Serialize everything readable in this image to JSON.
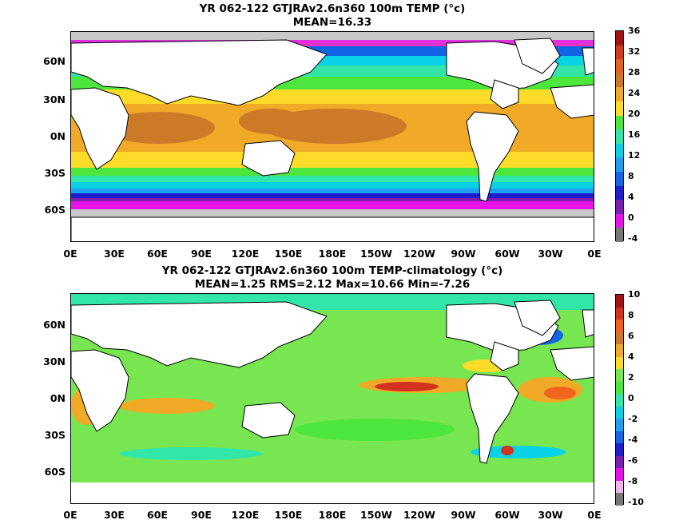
{
  "panels": [
    {
      "title_line1": "YR 062-122 GTJRAv2.6n360 100m TEMP (°c)",
      "title_line2": "MEAN=16.33",
      "lat_labels": [
        "60N",
        "30N",
        "0N",
        "30S",
        "60S"
      ],
      "lon_labels": [
        "0E",
        "30E",
        "60E",
        "90E",
        "120E",
        "150E",
        "180E",
        "150W",
        "120W",
        "90W",
        "60W",
        "30W",
        "0E"
      ],
      "colorbar_labels": [
        "36",
        "32",
        "28",
        "24",
        "20",
        "16",
        "12",
        "8",
        "4",
        "0",
        "-4"
      ],
      "colorbar_colors": [
        "#a01414",
        "#d23c1e",
        "#e3641e",
        "#cd7a28",
        "#f0aa28",
        "#fcdc28",
        "#4ce63c",
        "#32e6aa",
        "#0ad2e6",
        "#1ea0f0",
        "#1464e6",
        "#1e1ecd",
        "#7a1eb4",
        "#e614e6",
        "#787878"
      ]
    },
    {
      "title_line1": "YR 062-122 GTJRAv2.6n360 100m TEMP-climatology (°c)",
      "title_line2": "MEAN=1.25   RMS=2.12   Max=10.66   Min=-7.26",
      "lat_labels": [
        "60N",
        "30N",
        "0N",
        "30S",
        "60S"
      ],
      "lon_labels": [
        "0E",
        "30E",
        "60E",
        "90E",
        "120E",
        "150E",
        "180E",
        "150W",
        "120W",
        "90W",
        "60W",
        "30W",
        "0E"
      ],
      "colorbar_labels": [
        "10",
        "8",
        "6",
        "4",
        "2",
        "0",
        "-2",
        "-4",
        "-6",
        "-8",
        "-10"
      ],
      "colorbar_colors": [
        "#a01414",
        "#d2321e",
        "#f0641e",
        "#cd7a28",
        "#f0aa28",
        "#fcdc28",
        "#78e650",
        "#4ce63c",
        "#32e6aa",
        "#0ad2e6",
        "#1ea0f0",
        "#1464e6",
        "#1e1ecd",
        "#7a1eb4",
        "#e614e6",
        "#f0b4f0",
        "#787878"
      ]
    }
  ]
}
